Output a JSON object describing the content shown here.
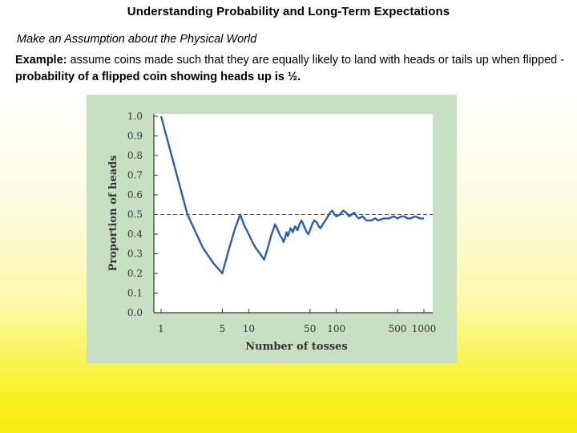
{
  "slide": {
    "title": "Understanding Probability and Long-Term Expectations",
    "subtitle": "Make an Assumption about the Physical World",
    "example_label": "Example:",
    "example_text": " assume coins made such that they are equally likely to land with heads or tails up when flipped - ",
    "example_bold": "probability of a flipped coin showing heads up is ½."
  },
  "colors": {
    "figure_background": "#c9dfc3",
    "plot_background": "#ffffff",
    "series_line": "#2e5ea8",
    "reference_line": "#555555"
  },
  "chart_data": {
    "type": "line",
    "title": "",
    "xlabel": "Number of tosses",
    "ylabel": "Proportion of heads",
    "x_scale": "log",
    "xlim": [
      1,
      1000
    ],
    "ylim": [
      0.0,
      1.0
    ],
    "x_ticks": [
      1,
      5,
      10,
      50,
      100,
      500,
      1000
    ],
    "x_tick_labels": [
      "1",
      "5",
      "10",
      "50",
      "100",
      "500",
      "1000"
    ],
    "y_ticks": [
      0.0,
      0.1,
      0.2,
      0.3,
      0.4,
      0.5,
      0.6,
      0.7,
      0.8,
      0.9,
      1.0
    ],
    "y_tick_labels": [
      "0.0",
      "0.1",
      "0.2",
      "0.3",
      "0.4",
      "0.5",
      "0.6",
      "0.7",
      "0.8",
      "0.9",
      "1.0"
    ],
    "reference_line": {
      "y": 0.5,
      "style": "dashed"
    },
    "grid": false,
    "series": [
      {
        "name": "",
        "points": [
          [
            1,
            1.0
          ],
          [
            2,
            0.5
          ],
          [
            3,
            0.33
          ],
          [
            4,
            0.25
          ],
          [
            5,
            0.2
          ],
          [
            6,
            0.33
          ],
          [
            7,
            0.43
          ],
          [
            8,
            0.5
          ],
          [
            9,
            0.44
          ],
          [
            10,
            0.4
          ],
          [
            11,
            0.36
          ],
          [
            12,
            0.33
          ],
          [
            13,
            0.31
          ],
          [
            14,
            0.29
          ],
          [
            15,
            0.27
          ],
          [
            16,
            0.31
          ],
          [
            17,
            0.35
          ],
          [
            18,
            0.39
          ],
          [
            19,
            0.42
          ],
          [
            20,
            0.45
          ],
          [
            21,
            0.43
          ],
          [
            22,
            0.41
          ],
          [
            23,
            0.39
          ],
          [
            24,
            0.38
          ],
          [
            25,
            0.36
          ],
          [
            26,
            0.38
          ],
          [
            27,
            0.41
          ],
          [
            28,
            0.39
          ],
          [
            29,
            0.41
          ],
          [
            30,
            0.43
          ],
          [
            31,
            0.42
          ],
          [
            32,
            0.41
          ],
          [
            33,
            0.43
          ],
          [
            34,
            0.44
          ],
          [
            35,
            0.43
          ],
          [
            36,
            0.42
          ],
          [
            38,
            0.45
          ],
          [
            40,
            0.47
          ],
          [
            42,
            0.45
          ],
          [
            44,
            0.43
          ],
          [
            46,
            0.41
          ],
          [
            48,
            0.4
          ],
          [
            50,
            0.42
          ],
          [
            53,
            0.45
          ],
          [
            56,
            0.47
          ],
          [
            60,
            0.46
          ],
          [
            63,
            0.44
          ],
          [
            66,
            0.43
          ],
          [
            70,
            0.45
          ],
          [
            75,
            0.47
          ],
          [
            80,
            0.49
          ],
          [
            85,
            0.51
          ],
          [
            90,
            0.52
          ],
          [
            95,
            0.5
          ],
          [
            100,
            0.49
          ],
          [
            110,
            0.5
          ],
          [
            120,
            0.52
          ],
          [
            130,
            0.51
          ],
          [
            140,
            0.49
          ],
          [
            150,
            0.5
          ],
          [
            160,
            0.51
          ],
          [
            170,
            0.49
          ],
          [
            180,
            0.48
          ],
          [
            200,
            0.49
          ],
          [
            220,
            0.47
          ],
          [
            250,
            0.47
          ],
          [
            280,
            0.48
          ],
          [
            300,
            0.47
          ],
          [
            350,
            0.48
          ],
          [
            400,
            0.48
          ],
          [
            450,
            0.49
          ],
          [
            500,
            0.48
          ],
          [
            550,
            0.49
          ],
          [
            600,
            0.49
          ],
          [
            650,
            0.48
          ],
          [
            700,
            0.48
          ],
          [
            800,
            0.49
          ],
          [
            900,
            0.48
          ],
          [
            1000,
            0.48
          ]
        ]
      }
    ]
  }
}
